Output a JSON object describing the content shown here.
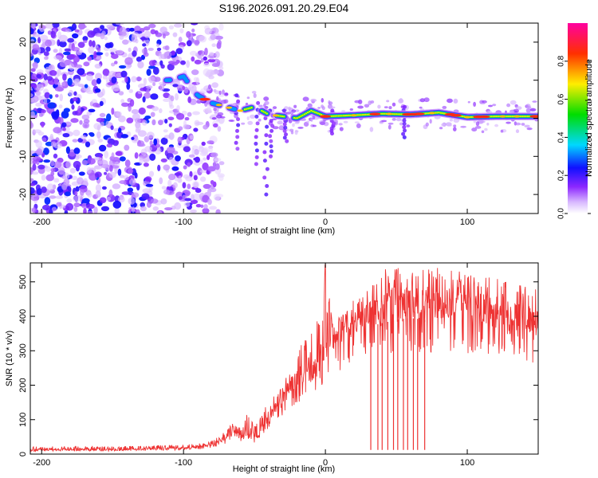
{
  "title": "S196.2026.091.20.29.E04",
  "colors": {
    "snr_line": "#ee3333",
    "axes": "#000000",
    "background": "#ffffff"
  },
  "chart_data": [
    {
      "type": "heatmap",
      "title": "",
      "xlabel": "Height of straight line (km)",
      "ylabel": "Frequency (Hz)",
      "xlim": [
        -208,
        150
      ],
      "ylim": [
        -25,
        25
      ],
      "x_ticks": [
        -200,
        -100,
        0,
        100
      ],
      "x_tick_labels": [
        "-200",
        "-100",
        "0",
        "100"
      ],
      "y_ticks": [
        -20,
        -10,
        0,
        10,
        20
      ],
      "y_tick_labels": [
        "-20",
        "-10",
        "0",
        "10",
        "20"
      ],
      "colorbar": {
        "label": "Normalized spectral amplitude",
        "range": [
          0,
          1
        ],
        "ticks": [
          0.0,
          0.2,
          0.4,
          0.6,
          0.8
        ],
        "tick_labels": [
          "0.0",
          "0.2",
          "0.4",
          "0.6",
          "0.8"
        ],
        "colormap": "rainbow"
      },
      "ridge": {
        "description": "dominant frequency track",
        "x": [
          -110,
          -100,
          -90,
          -80,
          -70,
          -60,
          -50,
          -40,
          -30,
          -20,
          -10,
          0,
          20,
          40,
          60,
          80,
          100,
          120,
          150
        ],
        "y": [
          10,
          11,
          6,
          4,
          3,
          2,
          3,
          1,
          0.5,
          0,
          2,
          0.5,
          0.8,
          1.2,
          1.0,
          1.5,
          0.3,
          0.5,
          0.5
        ]
      }
    },
    {
      "type": "line",
      "title": "",
      "xlabel": "Height of straight line (km)",
      "ylabel": "SNR (10 * v/v)",
      "xlim": [
        -208,
        150
      ],
      "ylim": [
        0,
        555
      ],
      "x_ticks": [
        -200,
        -100,
        0,
        100
      ],
      "x_tick_labels": [
        "-200",
        "-100",
        "0",
        "100"
      ],
      "y_ticks": [
        0,
        100,
        200,
        300,
        400,
        500
      ],
      "y_tick_labels": [
        "0",
        "100",
        "200",
        "300",
        "400",
        "500"
      ],
      "series": [
        {
          "name": "SNR",
          "x": [
            -208,
            -190,
            -170,
            -150,
            -130,
            -110,
            -90,
            -80,
            -70,
            -65,
            -60,
            -55,
            -50,
            -45,
            -40,
            -35,
            -30,
            -25,
            -20,
            -15,
            -10,
            -5,
            0,
            5,
            10,
            15,
            20,
            25,
            30,
            40,
            50,
            60,
            70,
            80,
            90,
            100,
            110,
            120,
            130,
            140,
            150
          ],
          "base": [
            10,
            12,
            12,
            11,
            13,
            14,
            18,
            25,
            40,
            60,
            45,
            55,
            40,
            70,
            90,
            120,
            150,
            170,
            200,
            210,
            220,
            250,
            280,
            300,
            320,
            340,
            350,
            360,
            370,
            380,
            390,
            395,
            390,
            390,
            395,
            390,
            385,
            380,
            370,
            360,
            350
          ],
          "peak": [
            30,
            30,
            32,
            30,
            32,
            35,
            40,
            50,
            90,
            110,
            100,
            160,
            110,
            180,
            170,
            230,
            250,
            280,
            300,
            330,
            350,
            400,
            550,
            380,
            400,
            420,
            450,
            480,
            500,
            540,
            540,
            545,
            550,
            545,
            540,
            530,
            520,
            510,
            500,
            490,
            480
          ]
        }
      ],
      "dropouts_x": [
        32,
        37,
        40,
        44,
        48,
        51,
        55,
        58,
        62,
        65,
        70
      ]
    }
  ]
}
